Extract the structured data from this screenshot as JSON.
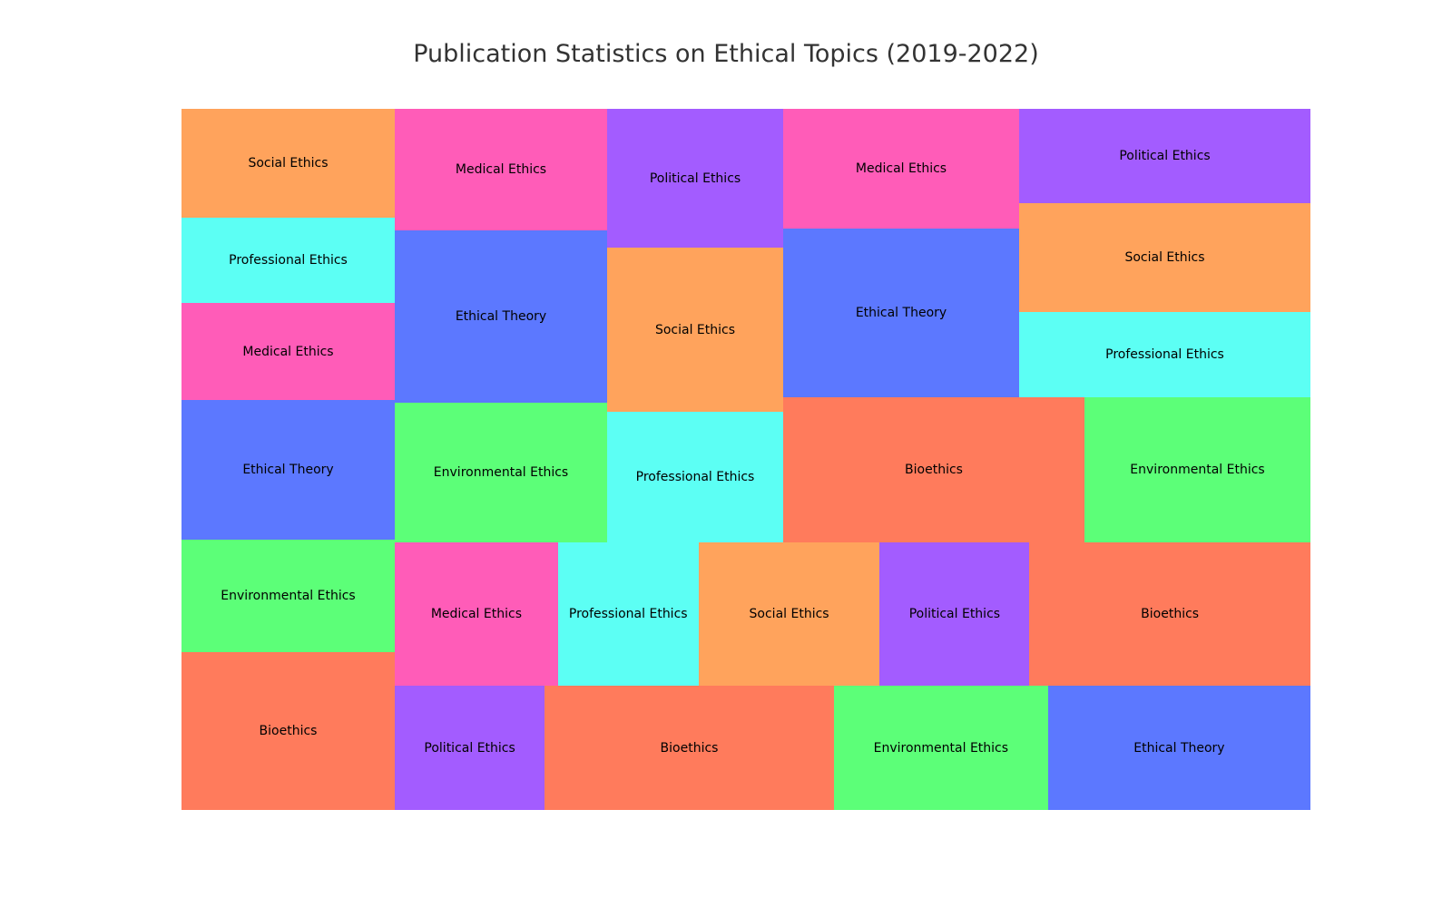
{
  "chart_data": {
    "type": "treemap",
    "title": "Publication Statistics on Ethical Topics (2019-2022)",
    "colors": {
      "Bioethics": "#FF7B5C",
      "Environmental Ethics": "#5CFF78",
      "Ethical Theory": "#5C78FF",
      "Medical Ethics": "#FF5CB8",
      "Professional Ethics": "#5CFFF4",
      "Social Ethics": "#FFA35C",
      "Political Ethics": "#A35CFF"
    },
    "groups": [
      {
        "items": [
          {
            "label": "Social Ethics",
            "value": 3.6
          },
          {
            "label": "Professional Ethics",
            "value": 2.8
          },
          {
            "label": "Medical Ethics",
            "value": 3.2
          },
          {
            "label": "Ethical Theory",
            "value": 4.6
          },
          {
            "label": "Environmental Ethics",
            "value": 3.7
          },
          {
            "label": "Bioethics",
            "value": 5.2
          }
        ]
      },
      {
        "items": [
          {
            "label": "Medical Ethics",
            "value": 4.0
          },
          {
            "label": "Ethical Theory",
            "value": 5.7
          },
          {
            "label": "Environmental Ethics",
            "value": 4.6
          }
        ]
      },
      {
        "items": [
          {
            "label": "Political Ethics",
            "value": 3.4
          },
          {
            "label": "Social Ethics",
            "value": 4.0
          },
          {
            "label": "Professional Ethics",
            "value": 3.2
          }
        ]
      },
      {
        "items": [
          {
            "label": "Medical Ethics",
            "value": 4.4
          },
          {
            "label": "Ethical Theory",
            "value": 6.2
          },
          {
            "label": "Political Ethics",
            "value": 4.2
          },
          {
            "label": "Social Ethics",
            "value": 4.9
          },
          {
            "label": "Professional Ethics",
            "value": 3.8
          },
          {
            "label": "Bioethics",
            "value": 6.8
          },
          {
            "label": "Environmental Ethics",
            "value": 5.1
          }
        ]
      },
      {
        "items": [
          {
            "label": "Medical Ethics",
            "value": 3.6
          },
          {
            "label": "Professional Ethics",
            "value": 3.1
          },
          {
            "label": "Social Ethics",
            "value": 4.0
          },
          {
            "label": "Political Ethics",
            "value": 3.3
          },
          {
            "label": "Bioethics",
            "value": 6.2
          }
        ]
      },
      {
        "items": [
          {
            "label": "Political Ethics",
            "value": 2.8
          },
          {
            "label": "Bioethics",
            "value": 5.4
          },
          {
            "label": "Environmental Ethics",
            "value": 4.0
          },
          {
            "label": "Ethical Theory",
            "value": 4.9
          }
        ]
      }
    ]
  }
}
